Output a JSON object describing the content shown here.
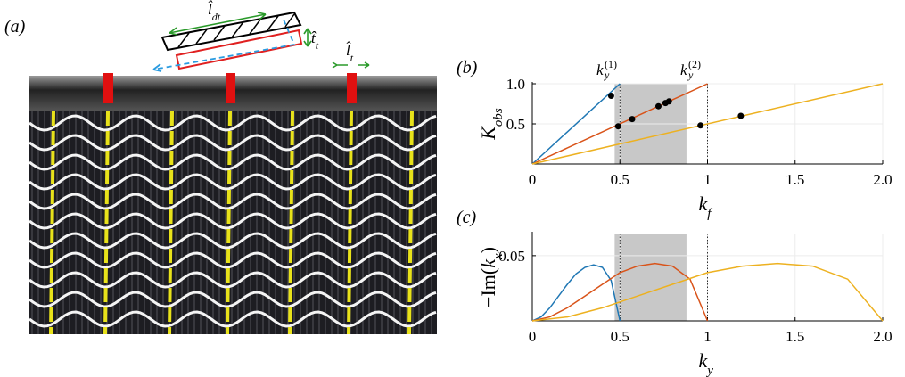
{
  "panel_a": {
    "label": "(a)",
    "annotations": [
      [
        "l̂",
        "dt"
      ],
      [
        "t̂",
        "t"
      ],
      [
        "l̂",
        "t"
      ]
    ]
  },
  "chart_data": [
    {
      "type": "line",
      "label": "(b)",
      "xlabel": [
        "k",
        "f"
      ],
      "ylabel": [
        "K",
        "obs"
      ],
      "xlim": [
        0,
        2
      ],
      "ylim": [
        0,
        1
      ],
      "xticks": [
        0,
        0.5,
        1,
        1.5,
        {
          "value": 2,
          "label": "2.0"
        }
      ],
      "yticks": [
        0.5,
        {
          "value": 1,
          "label": "1.0"
        }
      ],
      "grid": true,
      "shade": [
        0.47,
        0.88
      ],
      "vlines": [
        0.5,
        1
      ],
      "annotations": [
        [
          "k",
          "(1)",
          "y"
        ],
        [
          "k",
          "(2)",
          "y"
        ]
      ],
      "series": [
        {
          "color": "#1f77b4",
          "x": [
            0,
            0.5
          ],
          "values": [
            0,
            1
          ]
        },
        {
          "color": "#d95319",
          "x": [
            0,
            1
          ],
          "values": [
            0,
            1
          ]
        },
        {
          "color": "#edb120",
          "x": [
            0,
            2
          ],
          "values": [
            0,
            1
          ]
        }
      ],
      "points": {
        "color": "#000000",
        "x": [
          0.45,
          0.49,
          0.57,
          0.72,
          0.76,
          0.78,
          0.96,
          1.19
        ],
        "values": [
          0.85,
          0.47,
          0.56,
          0.72,
          0.76,
          0.78,
          0.48,
          0.6
        ]
      }
    },
    {
      "type": "line",
      "label": "(c)",
      "xlabel": [
        "k",
        "y"
      ],
      "ylabel": [
        "−Im(",
        "k",
        "x",
        ")"
      ],
      "xlim": [
        0,
        2
      ],
      "ylim": [
        0,
        0.067
      ],
      "xticks": [
        0,
        0.5,
        1,
        1.5,
        {
          "value": 2,
          "label": "2.0"
        }
      ],
      "yticks": [
        0.05
      ],
      "grid": true,
      "shade": [
        0.47,
        0.88
      ],
      "vlines": [
        0.5,
        1
      ],
      "series": [
        {
          "color": "#1f77b4",
          "x": [
            0,
            0.05,
            0.1,
            0.15,
            0.2,
            0.25,
            0.3,
            0.35,
            0.4,
            0.45,
            0.5
          ],
          "values": [
            0,
            0.003,
            0.01,
            0.019,
            0.028,
            0.036,
            0.041,
            0.043,
            0.041,
            0.031,
            0
          ]
        },
        {
          "color": "#d95319",
          "x": [
            0,
            0.1,
            0.2,
            0.3,
            0.4,
            0.5,
            0.6,
            0.7,
            0.8,
            0.9,
            1
          ],
          "values": [
            0,
            0.003,
            0.01,
            0.019,
            0.028,
            0.037,
            0.042,
            0.044,
            0.042,
            0.032,
            0
          ]
        },
        {
          "color": "#edb120",
          "x": [
            0,
            0.2,
            0.4,
            0.6,
            0.8,
            1,
            1.2,
            1.4,
            1.6,
            1.8,
            2
          ],
          "values": [
            0,
            0.003,
            0.01,
            0.019,
            0.028,
            0.037,
            0.042,
            0.044,
            0.042,
            0.032,
            0
          ]
        }
      ]
    }
  ]
}
